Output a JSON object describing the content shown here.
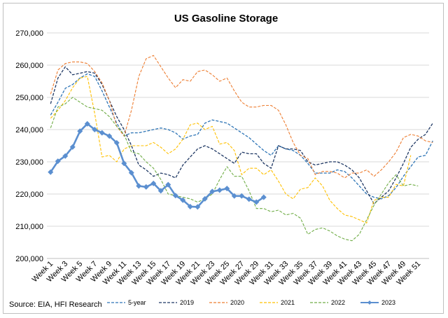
{
  "chart_data": {
    "type": "line",
    "title": "US Gasoline Storage",
    "source": "Source: EIA, HFI Research",
    "ylim": [
      200000,
      270000
    ],
    "yticks": [
      "200,000",
      "210,000",
      "220,000",
      "230,000",
      "240,000",
      "250,000",
      "260,000",
      "270,000"
    ],
    "xticks": [
      "Week 1",
      "Week 3",
      "Week 5",
      "Week 7",
      "Week 9",
      "Week 11",
      "Week 13",
      "Week 15",
      "Week 17",
      "Week 19",
      "Week 21",
      "Week 23",
      "Week 25",
      "Week 27",
      "Week 29",
      "Week 31",
      "Week 33",
      "Week 35",
      "Week 37",
      "Week 39",
      "Week 41",
      "Week 43",
      "Week 45",
      "Week 47",
      "Week 49",
      "Week 51"
    ],
    "grid": "horizontal",
    "legend_position": "bottom",
    "series": [
      {
        "name": "5-year",
        "color": "#2e75b6",
        "dash": "4,2",
        "width": 1.3,
        "marker": false,
        "values": [
          244500,
          248500,
          252800,
          254000,
          256000,
          257300,
          256500,
          252000,
          247000,
          242000,
          238000,
          239000,
          239000,
          239500,
          240000,
          240500,
          240000,
          239000,
          237000,
          238000,
          238500,
          242000,
          243000,
          242500,
          242000,
          240500,
          239000,
          237500,
          235500,
          233500,
          232000,
          235000,
          234000,
          233500,
          232000,
          229500,
          226500,
          226500,
          226500,
          227500,
          227000,
          225000,
          222500,
          220000,
          219000,
          218500,
          219500,
          222000,
          225500,
          228500,
          231500,
          232000,
          236500
        ]
      },
      {
        "name": "2019",
        "color": "#1f3864",
        "dash": "4,2",
        "width": 1.3,
        "marker": false,
        "values": [
          248000,
          256000,
          259500,
          257000,
          257500,
          258000,
          257500,
          254000,
          249000,
          244000,
          240000,
          235000,
          229000,
          227500,
          225500,
          226500,
          226000,
          225000,
          229000,
          231500,
          234000,
          235000,
          234000,
          232500,
          231000,
          229500,
          233000,
          232500,
          232500,
          229500,
          228000,
          235000,
          234000,
          234000,
          233500,
          230000,
          229000,
          229500,
          230000,
          230000,
          229000,
          227500,
          225000,
          221000,
          217000,
          219000,
          221000,
          225000,
          229500,
          234500,
          237000,
          238500,
          242000
        ]
      },
      {
        "name": "2020",
        "color": "#ed7d31",
        "dash": "4,2",
        "width": 1.1,
        "marker": false,
        "values": [
          251000,
          258500,
          260500,
          261000,
          261000,
          260500,
          258000,
          254500,
          249000,
          241000,
          238000,
          246000,
          256500,
          262000,
          263000,
          259500,
          256000,
          253000,
          255500,
          255000,
          258000,
          258500,
          257000,
          255000,
          256000,
          252000,
          248500,
          247000,
          247000,
          247500,
          247500,
          246000,
          241500,
          236000,
          232000,
          231000,
          226000,
          227000,
          227000,
          226500,
          225000,
          226500,
          226500,
          227500,
          225500,
          227500,
          230000,
          233000,
          237500,
          238500,
          238000,
          236500,
          236000
        ]
      },
      {
        "name": "2021",
        "color": "#ffc000",
        "dash": "4,2",
        "width": 1.1,
        "marker": false,
        "values": [
          243500,
          246000,
          249000,
          253000,
          256000,
          256500,
          245000,
          231500,
          232000,
          230000,
          234000,
          235000,
          235000,
          235000,
          236000,
          234500,
          232500,
          234000,
          237000,
          241500,
          242000,
          240000,
          241000,
          235500,
          236000,
          233500,
          226000,
          228000,
          228000,
          226000,
          227500,
          224000,
          220000,
          218500,
          221500,
          222000,
          225000,
          222500,
          218000,
          215500,
          213500,
          213000,
          212000,
          211000,
          218000,
          219000,
          219000,
          223000,
          222500,
          232000
        ]
      },
      {
        "name": "2022",
        "color": "#70ad47",
        "dash": "4,2",
        "width": 1.1,
        "marker": false,
        "values": [
          240500,
          247000,
          248000,
          250000,
          248500,
          247000,
          246500,
          246000,
          244000,
          241000,
          238500,
          233000,
          232500,
          230000,
          228000,
          224500,
          220000,
          219500,
          219000,
          218500,
          217500,
          218500,
          220000,
          224500,
          228500,
          225500,
          225500,
          221000,
          215500,
          215500,
          214500,
          215000,
          213500,
          214000,
          212500,
          207500,
          209000,
          209500,
          208500,
          207000,
          206000,
          205500,
          207500,
          212000,
          216500,
          220000,
          223500,
          226000,
          222500,
          223000,
          222500
        ]
      },
      {
        "name": "2023",
        "color": "#5b8fd0",
        "dash": "none",
        "width": 2.6,
        "marker": true,
        "values": [
          226800,
          230200,
          231800,
          234600,
          239500,
          241800,
          240000,
          239000,
          238000,
          235900,
          229500,
          226600,
          222500,
          222200,
          223300,
          221000,
          222900,
          219500,
          218100,
          216100,
          216000,
          218500,
          220800,
          221200,
          221700,
          219400,
          219400,
          218400,
          217500,
          219000
        ]
      }
    ]
  }
}
